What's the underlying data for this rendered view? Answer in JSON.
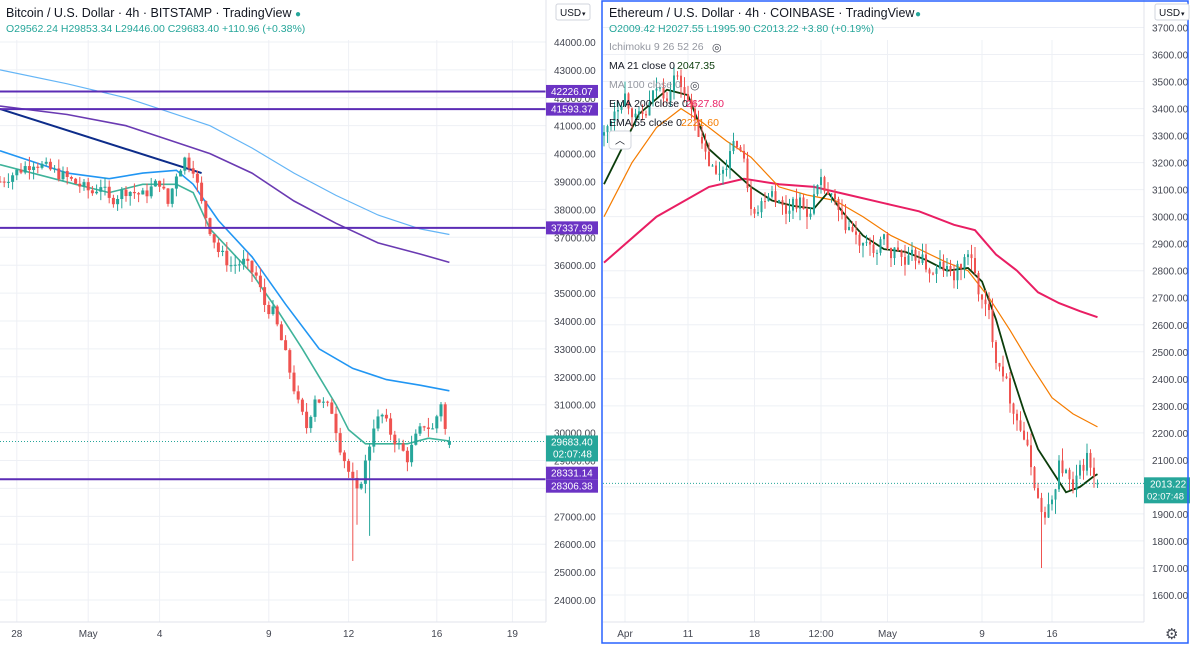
{
  "colors": {
    "up": "#26a69a",
    "down": "#ef5350",
    "hline": "#5b2cb5",
    "ma_teal": "#3fb39a",
    "ma_blue": "#2196f3",
    "ma_purple": "#6a3ab2",
    "ma_lightblue": "#64b5f6",
    "trend": "#0d2c8a",
    "ema200": "#e91e63",
    "ema55": "#f57c00",
    "ma21": "#0b3d0b",
    "panel_border": "#2962ff",
    "label_bg": "#6b33c4",
    "price_bg": "#26a69a",
    "text": "#131722",
    "axis_text": "#434651",
    "grid": "#eef0f5"
  },
  "left": {
    "title": "Bitcoin / U.S. Dollar · 4h · BITSTAMP · TradingView",
    "live_dot": "●",
    "ohlc": "O29562.24 H29853.34 L29446.00 C29683.40 +110.96 (+0.38%)",
    "currency": "USD",
    "yticks": [
      "44000.00",
      "43000.00",
      "42000.00",
      "41000.00",
      "40000.00",
      "39000.00",
      "38000.00",
      "37000.00",
      "36000.00",
      "35000.00",
      "34000.00",
      "33000.00",
      "32000.00",
      "31000.00",
      "30000.00",
      "29000.00",
      "28000.00",
      "27000.00",
      "26000.00",
      "25000.00",
      "24000.00"
    ],
    "level_labels": [
      "42226.07",
      "41593.37",
      "37337.99",
      "28331.14",
      "28306.38"
    ],
    "price_label": "29683.40",
    "countdown": "02:07:48",
    "xticks": [
      "28",
      "May",
      "4",
      "9",
      "12",
      "16",
      "19"
    ]
  },
  "right": {
    "title": "Ethereum / U.S. Dollar · 4h · COINBASE · TradingView",
    "live_dot": "●",
    "ohlc": "O2009.42 H2027.55 L1995.90 C2013.22 +3.80 (+0.19%)",
    "currency": "USD",
    "indicators": [
      {
        "label": "Ichimoku 9 26 52 26",
        "value": ""
      },
      {
        "label": "MA 21 close 0",
        "value": "2047.35"
      },
      {
        "label": "MA 100 close 0",
        "value": ""
      },
      {
        "label": "EMA 200 close 0",
        "value": "2627.80"
      },
      {
        "label": "EMA 55 close 0",
        "value": "2221.60"
      }
    ],
    "yticks": [
      "3700.00",
      "3600.00",
      "3500.00",
      "3400.00",
      "3300.00",
      "3200.00",
      "3100.00",
      "3000.00",
      "2900.00",
      "2800.00",
      "2700.00",
      "2600.00",
      "2500.00",
      "2400.00",
      "2300.00",
      "2200.00",
      "2100.00",
      "2000.00",
      "1900.00",
      "1800.00",
      "1700.00",
      "1600.00"
    ],
    "price_label": "2013.22",
    "countdown": "02:07:48",
    "xticks": [
      "Apr",
      "11",
      "18",
      "12:00",
      "May",
      "9",
      "16"
    ]
  },
  "chart_data": [
    {
      "type": "candlestick",
      "title": "Bitcoin / U.S. Dollar · 4h · BITSTAMP",
      "ylim": [
        23500,
        44500
      ],
      "ohlc_last": {
        "open": 29562.24,
        "high": 29853.34,
        "low": 29446.0,
        "close": 29683.4
      },
      "horizontal_levels": [
        42226.07,
        41593.37,
        37337.99,
        28331.14,
        28306.38
      ],
      "path": [
        [
          0,
          39000
        ],
        [
          8,
          39700
        ],
        [
          15,
          39200
        ],
        [
          22,
          38600
        ],
        [
          24,
          38900
        ],
        [
          26,
          38300
        ],
        [
          30,
          38700
        ],
        [
          34,
          38500
        ],
        [
          38,
          39000
        ],
        [
          40,
          38200
        ],
        [
          42,
          39300
        ],
        [
          44,
          39800
        ],
        [
          46,
          39500
        ],
        [
          48,
          38200
        ],
        [
          50,
          37300
        ],
        [
          52,
          36500
        ],
        [
          55,
          36000
        ],
        [
          58,
          36100
        ],
        [
          61,
          35600
        ],
        [
          63,
          34600
        ],
        [
          65,
          34300
        ],
        [
          67,
          33300
        ],
        [
          69,
          32200
        ],
        [
          71,
          31000
        ],
        [
          73,
          30200
        ],
        [
          75,
          31300
        ],
        [
          77,
          31000
        ],
        [
          79,
          30800
        ],
        [
          81,
          29500
        ],
        [
          83,
          28600
        ],
        [
          85,
          27800
        ],
        [
          87,
          28900
        ],
        [
          89,
          30300
        ],
        [
          91,
          30600
        ],
        [
          93,
          30000
        ],
        [
          95,
          29500
        ],
        [
          97,
          29100
        ],
        [
          99,
          29800
        ],
        [
          101,
          30300
        ],
        [
          103,
          30100
        ],
        [
          105,
          31100
        ],
        [
          106,
          30100
        ],
        [
          107,
          29680
        ]
      ],
      "extremes": [
        [
          84,
          25400
        ],
        [
          85,
          26700
        ],
        [
          88,
          26300
        ]
      ],
      "ma_teal": [
        [
          0,
          39600
        ],
        [
          18,
          38900
        ],
        [
          26,
          38600
        ],
        [
          34,
          38900
        ],
        [
          42,
          38900
        ],
        [
          46,
          38600
        ],
        [
          50,
          37300
        ],
        [
          55,
          36500
        ],
        [
          60,
          35700
        ],
        [
          66,
          34400
        ],
        [
          72,
          33000
        ],
        [
          76,
          32000
        ],
        [
          80,
          31000
        ],
        [
          83,
          30100
        ],
        [
          87,
          29600
        ],
        [
          92,
          29600
        ],
        [
          97,
          29600
        ],
        [
          102,
          29800
        ],
        [
          107,
          29700
        ]
      ],
      "ma_blue": [
        [
          0,
          40100
        ],
        [
          16,
          39300
        ],
        [
          26,
          39100
        ],
        [
          34,
          39300
        ],
        [
          42,
          39400
        ],
        [
          46,
          38900
        ],
        [
          52,
          37600
        ],
        [
          60,
          36300
        ],
        [
          68,
          34600
        ],
        [
          76,
          33000
        ],
        [
          84,
          32300
        ],
        [
          92,
          31900
        ],
        [
          100,
          31700
        ],
        [
          107,
          31500
        ]
      ],
      "ma_purple": [
        [
          0,
          41700
        ],
        [
          16,
          41400
        ],
        [
          30,
          41000
        ],
        [
          40,
          40500
        ],
        [
          50,
          40000
        ],
        [
          60,
          39300
        ],
        [
          70,
          38300
        ],
        [
          80,
          37500
        ],
        [
          90,
          36800
        ],
        [
          100,
          36400
        ],
        [
          107,
          36100
        ]
      ],
      "ma_lightblue": [
        [
          0,
          43000
        ],
        [
          16,
          42500
        ],
        [
          30,
          42000
        ],
        [
          40,
          41500
        ],
        [
          50,
          41000
        ],
        [
          60,
          40200
        ],
        [
          70,
          39300
        ],
        [
          80,
          38500
        ],
        [
          90,
          37800
        ],
        [
          100,
          37300
        ],
        [
          107,
          37100
        ]
      ],
      "trendline": [
        [
          0,
          41600
        ],
        [
          48,
          39300
        ]
      ],
      "x_label_index": {
        "28": 4,
        "May": 21,
        "4": 38,
        "9": 64,
        "12": 83,
        "16": 104,
        "19": 122
      },
      "n_bars": 130
    },
    {
      "type": "candlestick",
      "title": "Ethereum / U.S. Dollar · 4h · COINBASE",
      "ylim": [
        1500,
        3750
      ],
      "ohlc_last": {
        "open": 2009.42,
        "high": 2027.55,
        "low": 1995.9,
        "close": 2013.22
      },
      "path": [
        [
          0,
          3300
        ],
        [
          3,
          3400
        ],
        [
          6,
          3450
        ],
        [
          9,
          3360
        ],
        [
          12,
          3380
        ],
        [
          15,
          3480
        ],
        [
          18,
          3450
        ],
        [
          20,
          3520
        ],
        [
          22,
          3490
        ],
        [
          24,
          3420
        ],
        [
          26,
          3380
        ],
        [
          28,
          3250
        ],
        [
          30,
          3200
        ],
        [
          32,
          3150
        ],
        [
          34,
          3180
        ],
        [
          36,
          3230
        ],
        [
          38,
          3280
        ],
        [
          40,
          3200
        ],
        [
          42,
          3050
        ],
        [
          44,
          3020
        ],
        [
          46,
          3080
        ],
        [
          48,
          3100
        ],
        [
          50,
          3050
        ],
        [
          52,
          3020
        ],
        [
          54,
          3060
        ],
        [
          56,
          3050
        ],
        [
          58,
          3000
        ],
        [
          60,
          3070
        ],
        [
          62,
          3120
        ],
        [
          64,
          3080
        ],
        [
          66,
          3050
        ],
        [
          68,
          2980
        ],
        [
          70,
          2960
        ],
        [
          72,
          2920
        ],
        [
          74,
          2880
        ],
        [
          76,
          2900
        ],
        [
          78,
          2860
        ],
        [
          80,
          2920
        ],
        [
          82,
          2860
        ],
        [
          84,
          2880
        ],
        [
          86,
          2820
        ],
        [
          88,
          2850
        ],
        [
          90,
          2850
        ],
        [
          92,
          2820
        ],
        [
          94,
          2780
        ],
        [
          96,
          2820
        ],
        [
          98,
          2800
        ],
        [
          100,
          2780
        ],
        [
          102,
          2820
        ],
        [
          104,
          2870
        ],
        [
          106,
          2780
        ],
        [
          108,
          2680
        ],
        [
          110,
          2640
        ],
        [
          112,
          2480
        ],
        [
          114,
          2430
        ],
        [
          116,
          2330
        ],
        [
          118,
          2250
        ],
        [
          120,
          2180
        ],
        [
          122,
          2080
        ],
        [
          124,
          1950
        ],
        [
          126,
          1880
        ],
        [
          128,
          1950
        ],
        [
          130,
          2080
        ],
        [
          132,
          2050
        ],
        [
          134,
          1980
        ],
        [
          136,
          2060
        ],
        [
          138,
          2110
        ],
        [
          140,
          2030
        ],
        [
          141,
          2013
        ]
      ],
      "extremes": [
        [
          125,
          1700
        ],
        [
          138,
          2160
        ],
        [
          129,
          1900
        ]
      ],
      "ema200": [
        [
          0,
          2830
        ],
        [
          15,
          3000
        ],
        [
          30,
          3110
        ],
        [
          40,
          3140
        ],
        [
          50,
          3120
        ],
        [
          60,
          3110
        ],
        [
          70,
          3080
        ],
        [
          80,
          3050
        ],
        [
          90,
          3020
        ],
        [
          100,
          2970
        ],
        [
          106,
          2950
        ],
        [
          112,
          2860
        ],
        [
          118,
          2800
        ],
        [
          124,
          2720
        ],
        [
          130,
          2680
        ],
        [
          136,
          2650
        ],
        [
          141,
          2628
        ]
      ],
      "ema55": [
        [
          0,
          3000
        ],
        [
          8,
          3200
        ],
        [
          15,
          3330
        ],
        [
          22,
          3400
        ],
        [
          28,
          3350
        ],
        [
          35,
          3280
        ],
        [
          42,
          3220
        ],
        [
          50,
          3110
        ],
        [
          58,
          3080
        ],
        [
          66,
          3060
        ],
        [
          74,
          3000
        ],
        [
          82,
          2930
        ],
        [
          90,
          2880
        ],
        [
          98,
          2830
        ],
        [
          104,
          2800
        ],
        [
          110,
          2700
        ],
        [
          116,
          2580
        ],
        [
          122,
          2450
        ],
        [
          128,
          2330
        ],
        [
          134,
          2270
        ],
        [
          141,
          2222
        ]
      ],
      "ma21": [
        [
          0,
          3120
        ],
        [
          10,
          3380
        ],
        [
          18,
          3470
        ],
        [
          24,
          3450
        ],
        [
          30,
          3250
        ],
        [
          36,
          3180
        ],
        [
          42,
          3110
        ],
        [
          48,
          3060
        ],
        [
          54,
          3040
        ],
        [
          60,
          3030
        ],
        [
          64,
          3090
        ],
        [
          68,
          3020
        ],
        [
          74,
          2930
        ],
        [
          80,
          2880
        ],
        [
          86,
          2870
        ],
        [
          92,
          2840
        ],
        [
          98,
          2800
        ],
        [
          104,
          2810
        ],
        [
          108,
          2760
        ],
        [
          112,
          2620
        ],
        [
          116,
          2440
        ],
        [
          120,
          2280
        ],
        [
          124,
          2140
        ],
        [
          128,
          2060
        ],
        [
          132,
          1980
        ],
        [
          136,
          2000
        ],
        [
          140,
          2040
        ],
        [
          141,
          2047
        ]
      ],
      "x_label_index": {
        "Apr": 6,
        "11": 24,
        "18": 43,
        "12:00": 62,
        "May": 81,
        "9": 108,
        "16": 128
      },
      "n_bars": 150
    }
  ]
}
